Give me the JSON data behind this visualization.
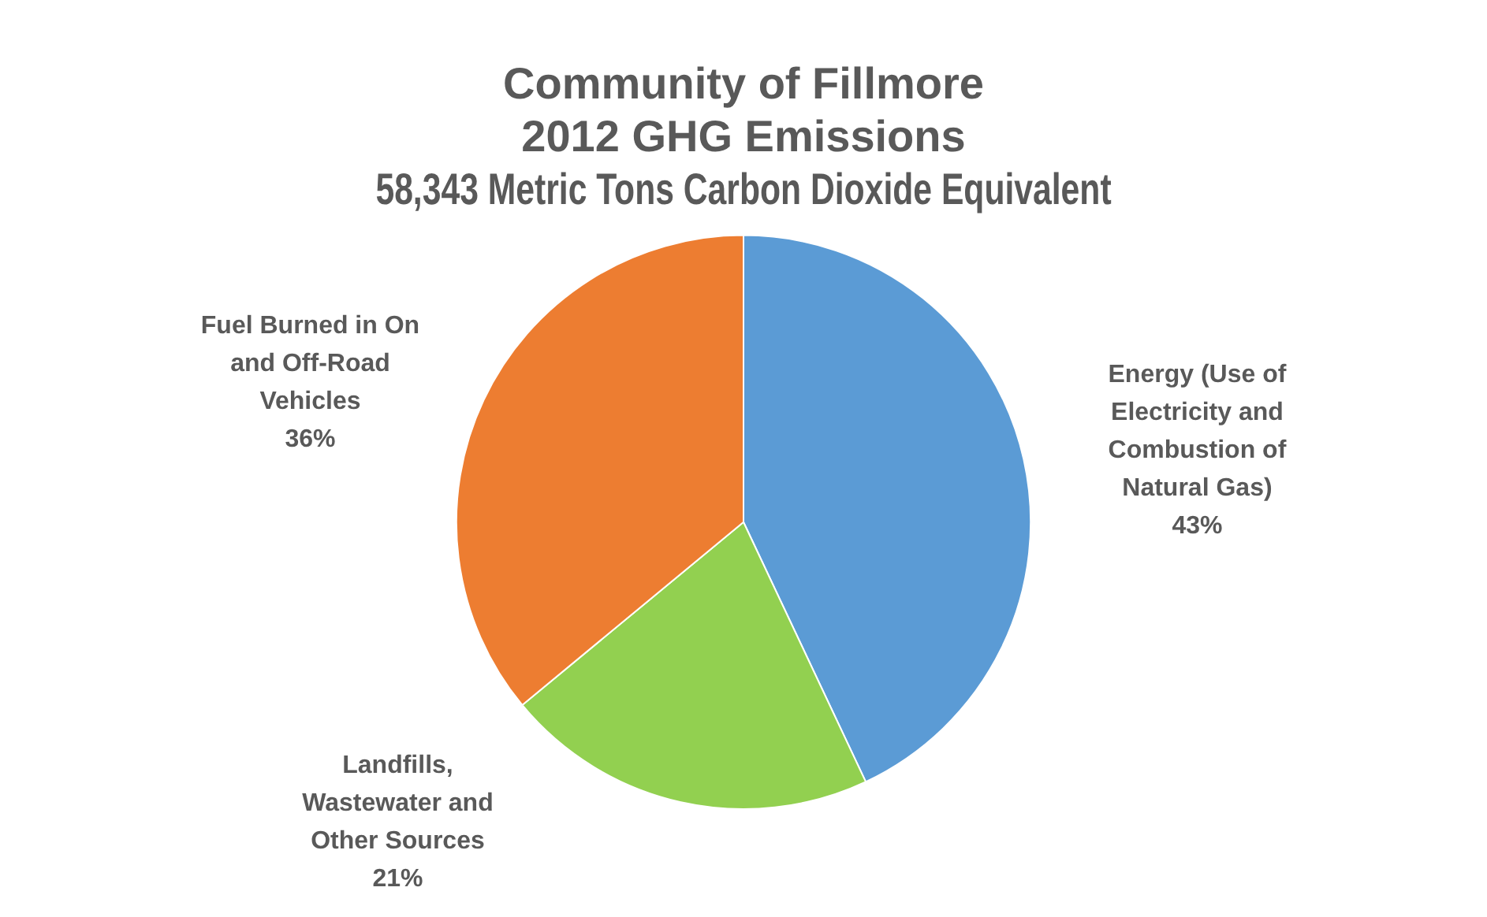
{
  "chart_data": {
    "type": "pie",
    "title": "Community of Fillmore\n2012 GHG Emissions\n58,343 Metric Tons Carbon Dioxide Equivalent",
    "categories": [
      "Energy (Use of Electricity and Combustion of Natural Gas)",
      "Landfills, Wastewater and Other Sources",
      "Fuel Burned in On and Off-Road Vehicles"
    ],
    "values": [
      43,
      21,
      36
    ],
    "colors": [
      "#5b9bd5",
      "#92d050",
      "#ed7d31"
    ],
    "value_labels": [
      "43%",
      "21%",
      "36%"
    ],
    "legend": false
  }
}
